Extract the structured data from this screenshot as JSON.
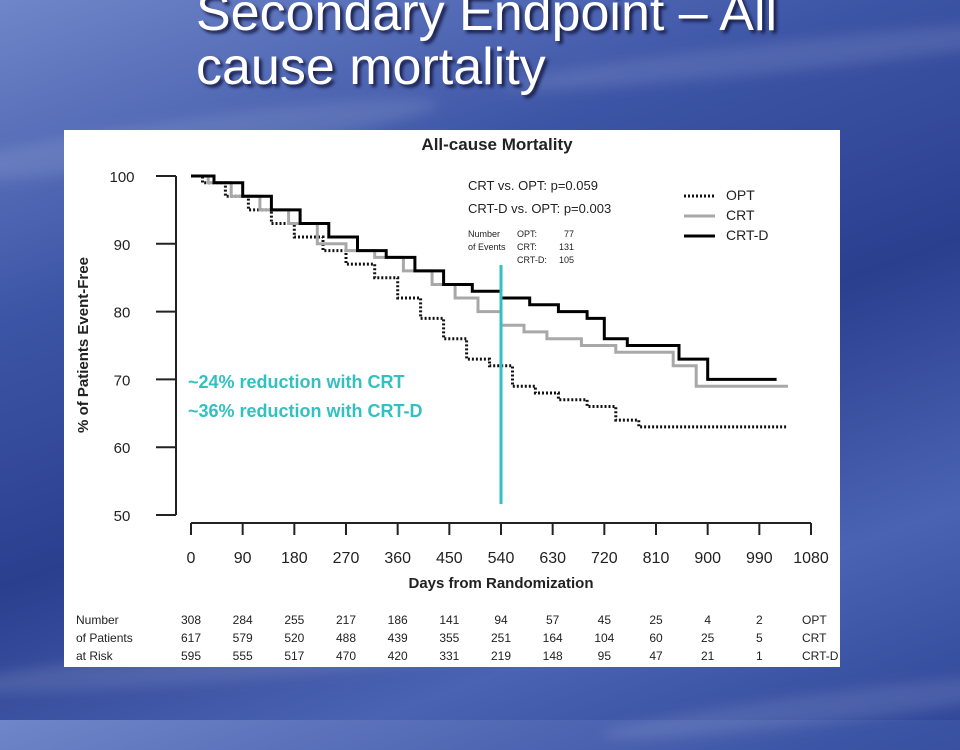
{
  "slide": {
    "title": "Secondary Endpoint – All cause mortality"
  },
  "chart_data": {
    "type": "line",
    "title": "All-cause Mortality",
    "xlabel": "Days from Randomization",
    "ylabel": "% of Patients Event-Free",
    "xlim": [
      0,
      1080
    ],
    "ylim": [
      50,
      100
    ],
    "x_ticks": [
      0,
      90,
      180,
      270,
      360,
      450,
      540,
      630,
      720,
      810,
      900,
      990,
      1080
    ],
    "y_ticks": [
      50,
      60,
      70,
      80,
      90,
      100
    ],
    "legend_position": "top-right",
    "stats": {
      "line1": "CRT vs. OPT:  p=0.059",
      "line2": "CRT-D vs. OPT:  p=0.003"
    },
    "events_table": {
      "label_line1": "Number",
      "label_line2": "of Events",
      "rows": [
        {
          "group": "OPT:",
          "count": "77"
        },
        {
          "group": "CRT:",
          "count": "131"
        },
        {
          "group": "CRT-D:",
          "count": "105"
        }
      ]
    },
    "series": [
      {
        "name": "OPT",
        "color": "#111111",
        "style": "dotted",
        "points": [
          [
            0,
            100
          ],
          [
            20,
            99
          ],
          [
            60,
            97
          ],
          [
            100,
            95
          ],
          [
            140,
            93
          ],
          [
            180,
            91
          ],
          [
            230,
            89
          ],
          [
            270,
            87
          ],
          [
            320,
            85
          ],
          [
            360,
            82
          ],
          [
            400,
            79
          ],
          [
            440,
            76
          ],
          [
            480,
            73
          ],
          [
            520,
            72
          ],
          [
            560,
            69
          ],
          [
            600,
            68
          ],
          [
            640,
            67
          ],
          [
            690,
            66
          ],
          [
            740,
            64
          ],
          [
            780,
            63
          ],
          [
            1040,
            63
          ]
        ]
      },
      {
        "name": "CRT",
        "color": "#a8a8a8",
        "style": "solid",
        "points": [
          [
            0,
            100
          ],
          [
            30,
            99
          ],
          [
            70,
            97
          ],
          [
            120,
            95
          ],
          [
            170,
            93
          ],
          [
            220,
            90
          ],
          [
            270,
            89
          ],
          [
            320,
            88
          ],
          [
            370,
            86
          ],
          [
            420,
            84
          ],
          [
            460,
            82
          ],
          [
            500,
            80
          ],
          [
            540,
            78
          ],
          [
            580,
            77
          ],
          [
            620,
            76
          ],
          [
            680,
            75
          ],
          [
            740,
            74
          ],
          [
            800,
            74
          ],
          [
            840,
            72
          ],
          [
            880,
            69
          ],
          [
            1040,
            69
          ]
        ]
      },
      {
        "name": "CRT-D",
        "color": "#000000",
        "style": "solid",
        "points": [
          [
            0,
            100
          ],
          [
            40,
            99
          ],
          [
            90,
            97
          ],
          [
            140,
            95
          ],
          [
            190,
            93
          ],
          [
            240,
            91
          ],
          [
            290,
            89
          ],
          [
            340,
            88
          ],
          [
            390,
            86
          ],
          [
            440,
            84
          ],
          [
            490,
            83
          ],
          [
            540,
            82
          ],
          [
            590,
            81
          ],
          [
            640,
            80
          ],
          [
            690,
            79
          ],
          [
            720,
            76
          ],
          [
            760,
            75
          ],
          [
            800,
            75
          ],
          [
            850,
            73
          ],
          [
            900,
            70
          ],
          [
            1020,
            70
          ]
        ]
      }
    ],
    "at_risk": {
      "label_line1": "Number",
      "label_line2": "of Patients",
      "label_line3": "at Risk",
      "rows": [
        {
          "group": "OPT",
          "values": [
            "308",
            "284",
            "255",
            "217",
            "186",
            "141",
            "94",
            "57",
            "45",
            "25",
            "4",
            "2"
          ]
        },
        {
          "group": "CRT",
          "values": [
            "617",
            "579",
            "520",
            "488",
            "439",
            "355",
            "251",
            "164",
            "104",
            "60",
            "25",
            "5"
          ]
        },
        {
          "group": "CRT-D",
          "values": [
            "595",
            "555",
            "517",
            "470",
            "420",
            "331",
            "219",
            "148",
            "95",
            "47",
            "21",
            "1"
          ]
        }
      ]
    },
    "annotation": {
      "line1": "~24% reduction with CRT",
      "line2": "~36% reduction with CRT-D",
      "color": "#33c0c0",
      "marker_x": 540
    }
  }
}
